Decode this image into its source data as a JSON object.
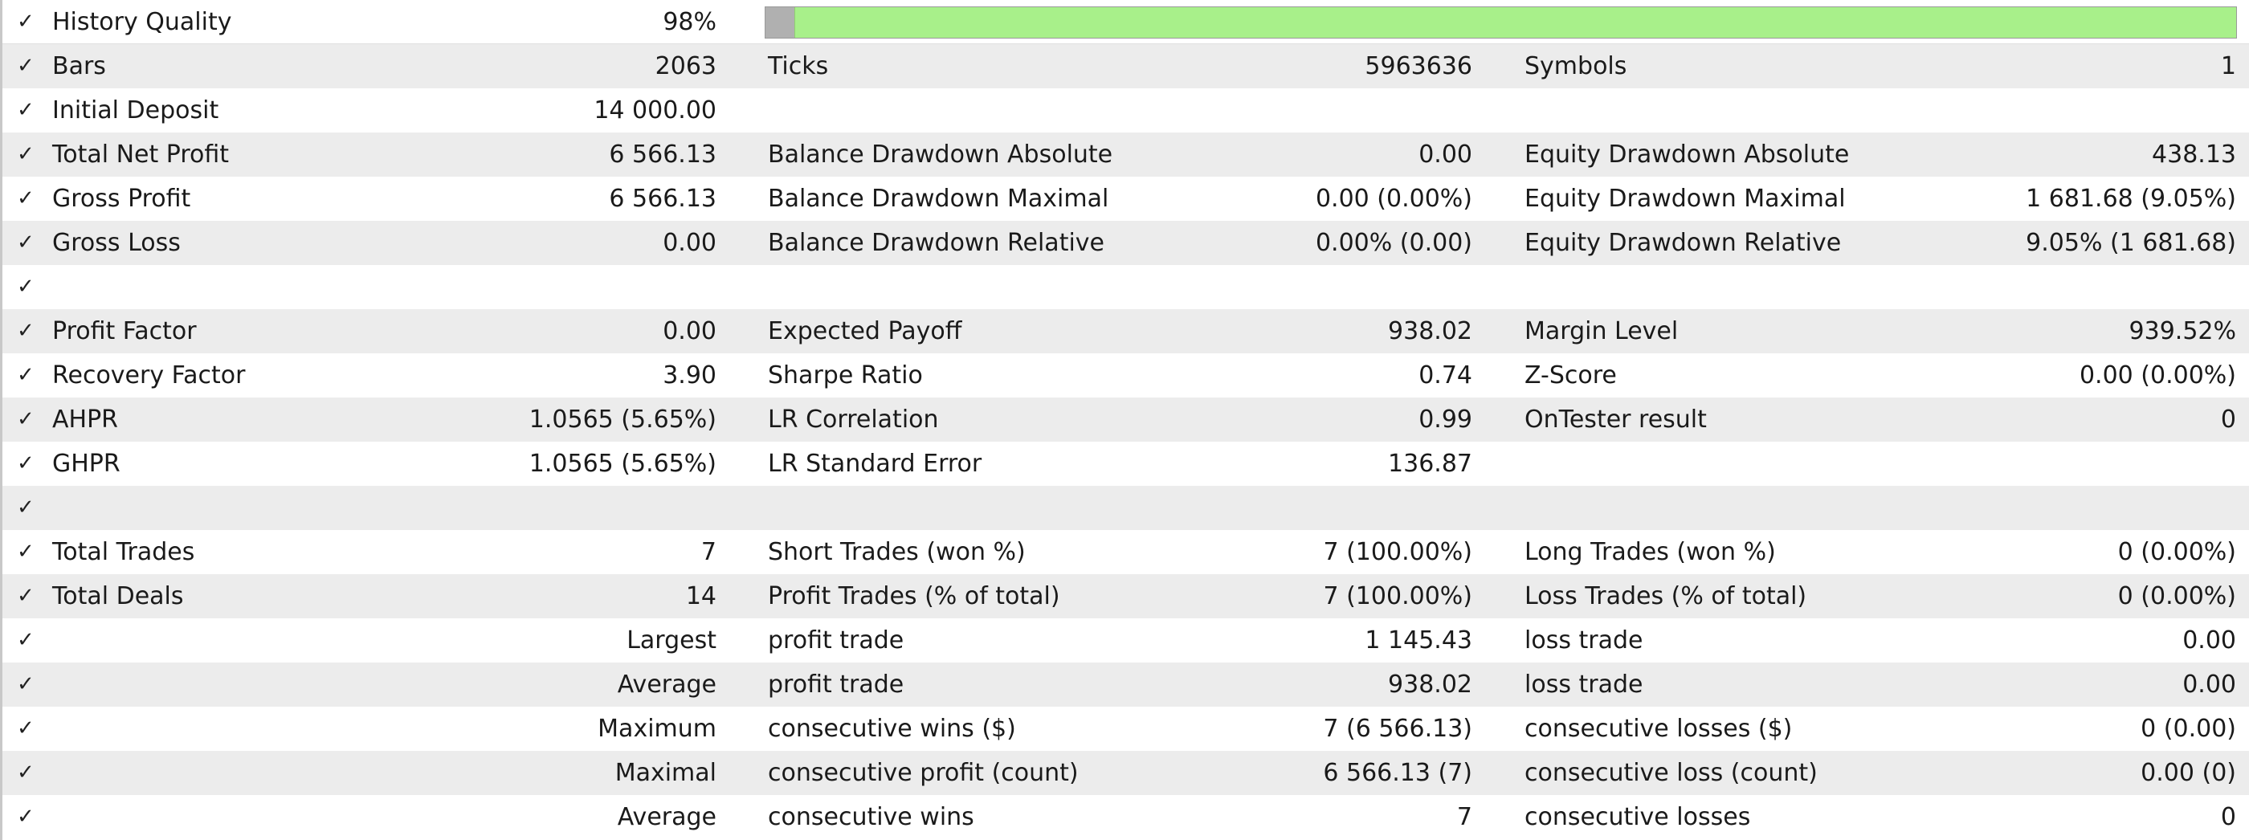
{
  "history_quality": {
    "label": "History Quality",
    "value": "98%",
    "fill_fraction": 0.98,
    "bar_color": "#a8f08a"
  },
  "rows": [
    {
      "l1": "Bars",
      "v1": "2063",
      "l2": "Ticks",
      "v2": "5963636",
      "l3": "Symbols",
      "v3": "1"
    },
    {
      "l1": "Initial Deposit",
      "v1": "14 000.00",
      "l2": "",
      "v2": "",
      "l3": "",
      "v3": ""
    },
    {
      "l1": "Total Net Profit",
      "v1": "6 566.13",
      "l2": "Balance Drawdown Absolute",
      "v2": "0.00",
      "l3": "Equity Drawdown Absolute",
      "v3": "438.13"
    },
    {
      "l1": "Gross Profit",
      "v1": "6 566.13",
      "l2": "Balance Drawdown Maximal",
      "v2": "0.00 (0.00%)",
      "l3": "Equity Drawdown Maximal",
      "v3": "1 681.68 (9.05%)"
    },
    {
      "l1": "Gross Loss",
      "v1": "0.00",
      "l2": "Balance Drawdown Relative",
      "v2": "0.00% (0.00)",
      "l3": "Equity Drawdown Relative",
      "v3": "9.05% (1 681.68)"
    },
    {
      "l1": "",
      "v1": "",
      "l2": "",
      "v2": "",
      "l3": "",
      "v3": ""
    },
    {
      "l1": "Profit Factor",
      "v1": "0.00",
      "l2": "Expected Payoff",
      "v2": "938.02",
      "l3": "Margin Level",
      "v3": "939.52%"
    },
    {
      "l1": "Recovery Factor",
      "v1": "3.90",
      "l2": "Sharpe Ratio",
      "v2": "0.74",
      "l3": "Z-Score",
      "v3": "0.00 (0.00%)"
    },
    {
      "l1": "AHPR",
      "v1": "1.0565 (5.65%)",
      "l2": "LR Correlation",
      "v2": "0.99",
      "l3": "OnTester result",
      "v3": "0"
    },
    {
      "l1": "GHPR",
      "v1": "1.0565 (5.65%)",
      "l2": "LR Standard Error",
      "v2": "136.87",
      "l3": "",
      "v3": ""
    },
    {
      "l1": "",
      "v1": "",
      "l2": "",
      "v2": "",
      "l3": "",
      "v3": ""
    },
    {
      "l1": "Total Trades",
      "v1": "7",
      "l2": "Short Trades (won %)",
      "v2": "7 (100.00%)",
      "l3": "Long Trades (won %)",
      "v3": "0 (0.00%)"
    },
    {
      "l1": "Total Deals",
      "v1": "14",
      "l2": "Profit Trades (% of total)",
      "v2": "7 (100.00%)",
      "l3": "Loss Trades (% of total)",
      "v3": "0 (0.00%)"
    },
    {
      "l1": "",
      "v1": "Largest",
      "l2": "profit trade",
      "v2": "1 145.43",
      "l3": "loss trade",
      "v3": "0.00"
    },
    {
      "l1": "",
      "v1": "Average",
      "l2": "profit trade",
      "v2": "938.02",
      "l3": "loss trade",
      "v3": "0.00"
    },
    {
      "l1": "",
      "v1": "Maximum",
      "l2": "consecutive wins ($)",
      "v2": "7 (6 566.13)",
      "l3": "consecutive losses ($)",
      "v3": "0 (0.00)"
    },
    {
      "l1": "",
      "v1": "Maximal",
      "l2": "consecutive profit (count)",
      "v2": "6 566.13 (7)",
      "l3": "consecutive loss (count)",
      "v3": "0.00 (0)"
    },
    {
      "l1": "",
      "v1": "Average",
      "l2": "consecutive wins",
      "v2": "7",
      "l3": "consecutive losses",
      "v3": "0"
    }
  ],
  "check_glyph": "✓",
  "icons": {
    "row_check": "checkmark-icon"
  },
  "colors": {
    "shaded_row": "#ececec",
    "bar_fill": "#a8f08a",
    "bar_empty": "#b0b0b0"
  }
}
